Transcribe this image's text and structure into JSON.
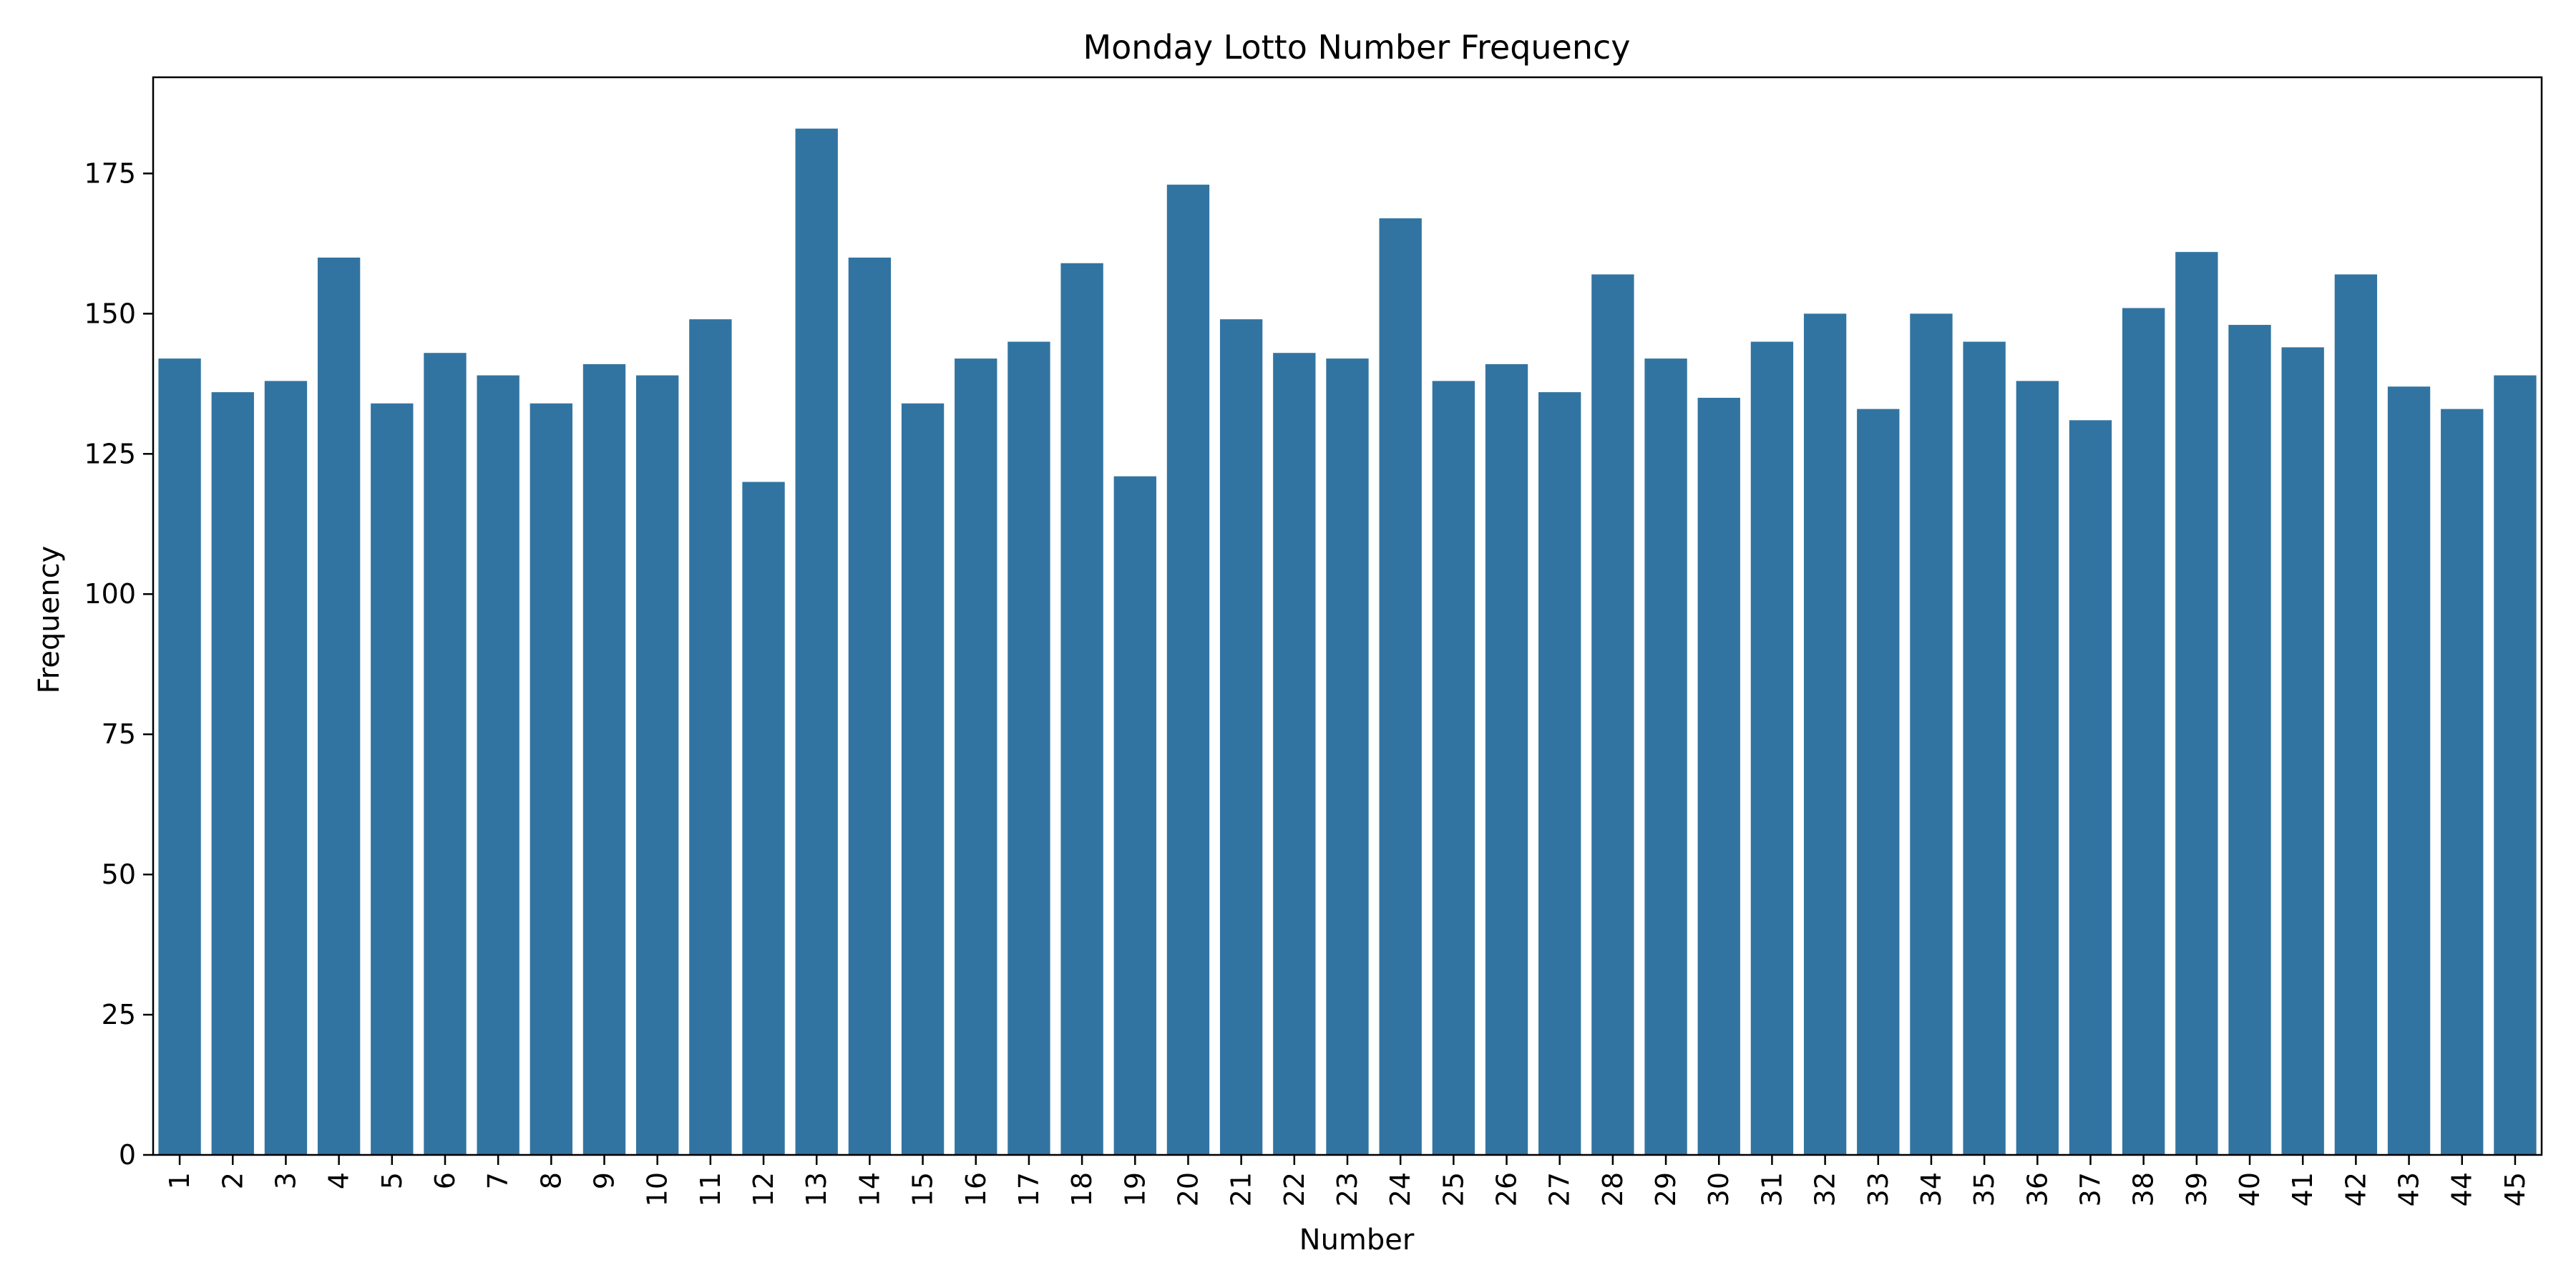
{
  "chart_data": {
    "type": "bar",
    "title": "Monday Lotto Number Frequency",
    "xlabel": "Number",
    "ylabel": "Frequency",
    "categories": [
      "1",
      "2",
      "3",
      "4",
      "5",
      "6",
      "7",
      "8",
      "9",
      "10",
      "11",
      "12",
      "13",
      "14",
      "15",
      "16",
      "17",
      "18",
      "19",
      "20",
      "21",
      "22",
      "23",
      "24",
      "25",
      "26",
      "27",
      "28",
      "29",
      "30",
      "31",
      "32",
      "33",
      "34",
      "35",
      "36",
      "37",
      "38",
      "39",
      "40",
      "41",
      "42",
      "43",
      "44",
      "45"
    ],
    "values": [
      142,
      136,
      138,
      160,
      134,
      143,
      139,
      134,
      141,
      139,
      149,
      120,
      183,
      160,
      134,
      142,
      145,
      159,
      121,
      173,
      149,
      143,
      142,
      167,
      138,
      141,
      136,
      157,
      142,
      135,
      145,
      150,
      133,
      150,
      145,
      138,
      131,
      151,
      161,
      148,
      144,
      157,
      137,
      133,
      139
    ],
    "ylim": [
      0,
      192.15
    ],
    "yticks": [
      0,
      25,
      50,
      75,
      100,
      125,
      150,
      175
    ],
    "bar_color": "#3274a1",
    "grid": false,
    "legend": "none",
    "x_tick_rotation": "vertical"
  }
}
